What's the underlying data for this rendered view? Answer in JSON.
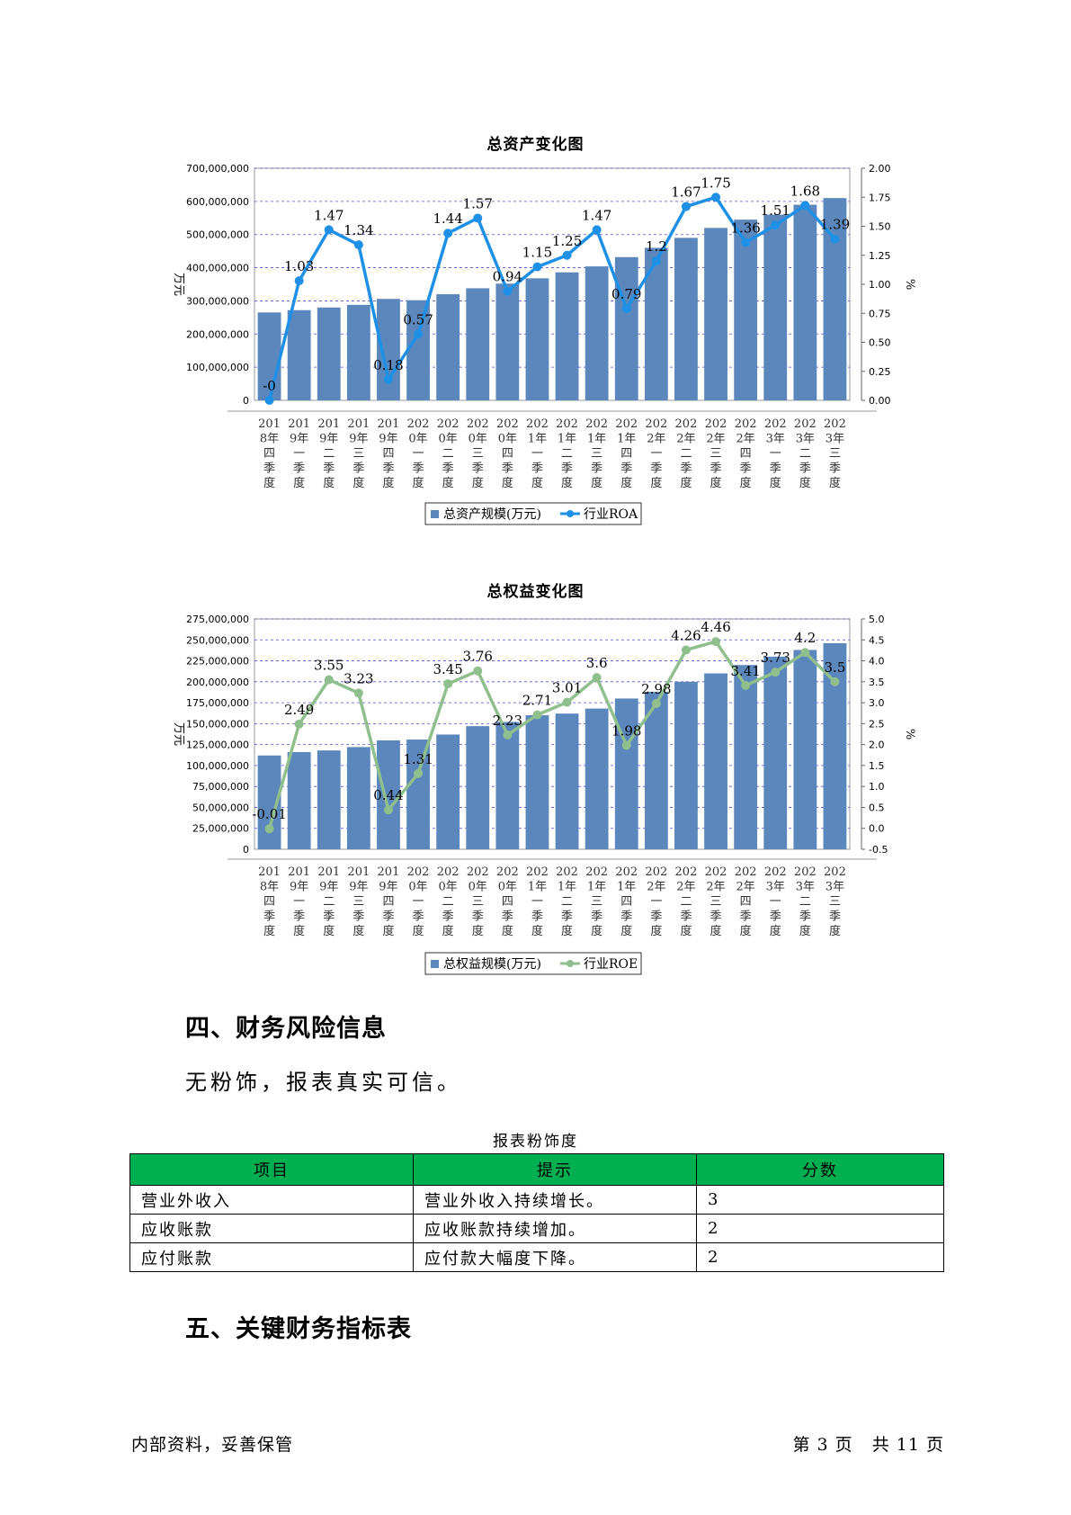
{
  "charts": [
    {
      "title": "总资产变化图",
      "left_axis_label": "万元",
      "right_axis_label": "%",
      "left_ticks": [
        "700,000,000",
        "600,000,000",
        "500,000,000",
        "400,000,000",
        "300,000,000",
        "200,000,000",
        "100,000,000",
        "0"
      ],
      "right_ticks": [
        "2.00",
        "1.75",
        "1.50",
        "1.25",
        "1.00",
        "0.75",
        "0.50",
        "0.25",
        "0.00"
      ],
      "legend_bar": "总资产规模(万元)",
      "legend_line": "行业ROA"
    },
    {
      "title": "总权益变化图",
      "left_axis_label": "万元",
      "right_axis_label": "%",
      "left_ticks": [
        "275,000,000",
        "250,000,000",
        "225,000,000",
        "200,000,000",
        "175,000,000",
        "150,000,000",
        "125,000,000",
        "100,000,000",
        "75,000,000",
        "50,000,000",
        "25,000,000",
        "0"
      ],
      "right_ticks": [
        "5.0",
        "4.5",
        "4.0",
        "3.5",
        "3.0",
        "2.5",
        "2.0",
        "1.5",
        "1.0",
        "0.5",
        "0.0",
        "-0.5"
      ],
      "legend_bar": "总权益规模(万元)",
      "legend_line": "行业ROE"
    }
  ],
  "chart_data": [
    {
      "type": "bar",
      "title": "总资产变化图",
      "categories": [
        "2018年四季度",
        "2019年一季度",
        "2019年二季度",
        "2019年三季度",
        "2019年四季度",
        "2020年一季度",
        "2020年二季度",
        "2020年三季度",
        "2020年四季度",
        "2021年一季度",
        "2021年二季度",
        "2021年三季度",
        "2021年四季度",
        "2022年一季度",
        "2022年二季度",
        "2022年三季度",
        "2022年四季度",
        "2023年一季度",
        "2023年二季度",
        "2023年三季度"
      ],
      "series": [
        {
          "name": "总资产规模(万元)",
          "axis": "left",
          "values": [
            265000000,
            272000000,
            280000000,
            288000000,
            306000000,
            302000000,
            320000000,
            338000000,
            352000000,
            368000000,
            386000000,
            404000000,
            432000000,
            460000000,
            490000000,
            520000000,
            545000000,
            560000000,
            590000000,
            610000000
          ]
        },
        {
          "name": "行业ROA",
          "axis": "right",
          "type": "line",
          "values": [
            0,
            1.03,
            1.47,
            1.34,
            0.18,
            0.57,
            1.44,
            1.57,
            0.94,
            1.15,
            1.25,
            1.47,
            0.79,
            1.2,
            1.67,
            1.75,
            1.36,
            1.51,
            1.68,
            1.39
          ]
        }
      ],
      "point_labels": [
        "-0",
        "1.03",
        "1.47",
        "1.34",
        "0.18",
        "0.57",
        "1.44",
        "1.57",
        "0.94",
        "1.15",
        "1.25",
        "1.47",
        "0.79",
        "1.2",
        "1.67",
        "1.75",
        "1.36",
        "1.51",
        "1.68",
        "1.39"
      ],
      "ylim_left": [
        0,
        700000000
      ],
      "ylim_right": [
        0,
        2
      ],
      "ylabel": "万元",
      "ylabel_right": "%",
      "grid": true,
      "legend": "bottom",
      "colors": {
        "bar": "#5b87bd",
        "line": "#1e90e6"
      }
    },
    {
      "type": "bar",
      "title": "总权益变化图",
      "categories": [
        "2018年四季度",
        "2019年一季度",
        "2019年二季度",
        "2019年三季度",
        "2019年四季度",
        "2020年一季度",
        "2020年二季度",
        "2020年三季度",
        "2020年四季度",
        "2021年一季度",
        "2021年二季度",
        "2021年三季度",
        "2021年四季度",
        "2022年一季度",
        "2022年二季度",
        "2022年三季度",
        "2022年四季度",
        "2023年一季度",
        "2023年二季度",
        "2023年三季度"
      ],
      "series": [
        {
          "name": "总权益规模(万元)",
          "axis": "left",
          "values": [
            112000000,
            116000000,
            118000000,
            122000000,
            130000000,
            131000000,
            137000000,
            147000000,
            152000000,
            160000000,
            162000000,
            168000000,
            180000000,
            188000000,
            200000000,
            210000000,
            220000000,
            230000000,
            238000000,
            246000000
          ]
        },
        {
          "name": "行业ROE",
          "axis": "right",
          "type": "line",
          "values": [
            -0.01,
            2.49,
            3.55,
            3.23,
            0.44,
            1.31,
            3.45,
            3.76,
            2.23,
            2.71,
            3.01,
            3.6,
            1.98,
            2.98,
            4.26,
            4.46,
            3.41,
            3.73,
            4.2,
            3.5
          ]
        }
      ],
      "point_labels": [
        "-0.01",
        "2.49",
        "3.55",
        "3.23",
        "0.44",
        "1.31",
        "3.45",
        "3.76",
        "2.23",
        "2.71",
        "3.01",
        "3.6",
        "1.98",
        "2.98",
        "4.26",
        "4.46",
        "3.41",
        "3.73",
        "4.2",
        "3.5"
      ],
      "ylim_left": [
        0,
        275000000
      ],
      "ylim_right": [
        -0.5,
        5
      ],
      "ylabel": "万元",
      "ylabel_right": "%",
      "grid": true,
      "legend": "bottom",
      "colors": {
        "bar": "#5b87bd",
        "line": "#8fbf8c"
      }
    }
  ],
  "section4": {
    "heading": "四、财务风险信息",
    "text": "无粉饰，报表真实可信。"
  },
  "table": {
    "caption": "报表粉饰度",
    "headers": [
      "项目",
      "提示",
      "分数"
    ],
    "rows": [
      [
        "营业外收入",
        "营业外收入持续增长。",
        "3"
      ],
      [
        "应收账款",
        "应收账款持续增加。",
        "2"
      ],
      [
        "应付账款",
        "应付款大幅度下降。",
        "2"
      ]
    ],
    "header_color": "#00b050"
  },
  "section5": {
    "heading": "五、关键财务指标表"
  },
  "footer": {
    "left": "内部资料，妥善保管",
    "right": "第 3 页   共 11 页"
  }
}
